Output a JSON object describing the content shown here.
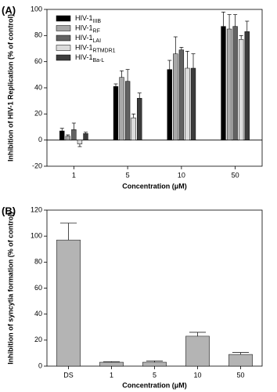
{
  "chart_data": [
    {
      "type": "bar",
      "panel_label": "(A)",
      "y_label": "Inhibition of HIV-1 Replication (% of control)",
      "x_label": "Concentration (μM)",
      "categories": [
        "1",
        "5",
        "10",
        "50"
      ],
      "ylim": [
        -20,
        100
      ],
      "yticks": [
        -20,
        0,
        20,
        40,
        60,
        80,
        100
      ],
      "legend": "upper left",
      "series": [
        {
          "name": "HIV-1",
          "subscript": "IIIB",
          "color": "#000000",
          "values": [
            7,
            41,
            54,
            87
          ],
          "errors": [
            2,
            2,
            7,
            11
          ]
        },
        {
          "name": "HIV-1",
          "subscript": "RF",
          "color": "#a8a8a8",
          "values": [
            3,
            48,
            66,
            85
          ],
          "errors": [
            1,
            5,
            13,
            11
          ]
        },
        {
          "name": "HIV-1",
          "subscript": "LAI",
          "color": "#626262",
          "values": [
            8,
            45,
            69,
            87
          ],
          "errors": [
            5,
            9,
            2,
            9
          ]
        },
        {
          "name": "HIV-1",
          "subscript": "RTMDR1",
          "color": "#dcdcdc",
          "values": [
            -3,
            17,
            55,
            77
          ],
          "errors": [
            2,
            3,
            13,
            3
          ]
        },
        {
          "name": "HIV-1",
          "subscript": "Ba-L",
          "color": "#3c3c3c",
          "values": [
            5,
            32,
            55,
            83
          ],
          "errors": [
            1,
            4,
            11,
            8
          ]
        }
      ]
    },
    {
      "type": "bar",
      "panel_label": "(B)",
      "y_label": "Inhibition of syncytia formation (% of control)",
      "x_label": "Concentration (μM)",
      "categories": [
        "DS",
        "1",
        "5",
        "10",
        "50"
      ],
      "ylim": [
        0,
        120
      ],
      "yticks": [
        0,
        20,
        40,
        60,
        80,
        100,
        120
      ],
      "series": [
        {
          "color": "#b4b4b4",
          "values": [
            97,
            3,
            3,
            23,
            9
          ],
          "errors": [
            13,
            0.5,
            1,
            3,
            1.5
          ]
        }
      ]
    }
  ]
}
